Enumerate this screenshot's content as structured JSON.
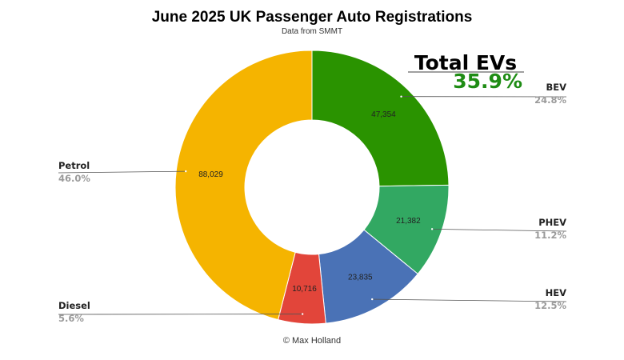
{
  "chart_data": {
    "type": "pie",
    "title": "June 2025 UK Passenger Auto Registrations",
    "subtitle": "Data from SMMT",
    "credit": "© Max Holland",
    "callout": {
      "title": "Total EVs",
      "value": "35.9%",
      "color": "#1e8c14"
    },
    "slices": [
      {
        "name": "BEV",
        "value": 47354,
        "value_label": "47,354",
        "pct_label": "24.8%",
        "color": "#2a9300"
      },
      {
        "name": "PHEV",
        "value": 21382,
        "value_label": "21,382",
        "pct_label": "11.2%",
        "color": "#32a862"
      },
      {
        "name": "HEV",
        "value": 23835,
        "value_label": "23,835",
        "pct_label": "12.5%",
        "color": "#4a72b6"
      },
      {
        "name": "Diesel",
        "value": 10716,
        "value_label": "10,716",
        "pct_label": "5.6%",
        "color": "#e2453a"
      },
      {
        "name": "Petrol",
        "value": 88029,
        "value_label": "88,029",
        "pct_label": "46.0%",
        "color": "#f5b400"
      }
    ]
  }
}
